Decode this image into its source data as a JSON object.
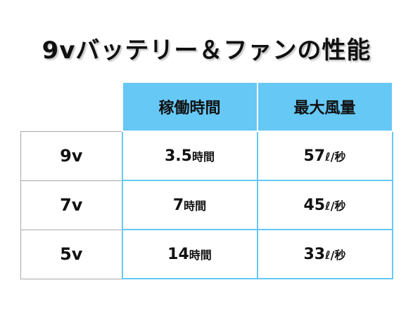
{
  "title": "9vバッテリー＆ファンの性能",
  "headers": {
    "operating_time": "稼働時間",
    "max_airflow": "最大風量"
  },
  "rows": [
    {
      "voltage": "9v",
      "time_value": "3.5",
      "time_unit": "時間",
      "airflow_value": "57",
      "airflow_unit": "ℓ/秒"
    },
    {
      "voltage": "7v",
      "time_value": "7",
      "time_unit": "時間",
      "airflow_value": "45",
      "airflow_unit": "ℓ/秒"
    },
    {
      "voltage": "5v",
      "time_value": "14",
      "time_unit": "時間",
      "airflow_value": "33",
      "airflow_unit": "ℓ/秒"
    }
  ],
  "colors": {
    "header_bg": "#66c8f5",
    "border_blue": "#66c8f5",
    "border_gray": "#a9a9a9"
  }
}
